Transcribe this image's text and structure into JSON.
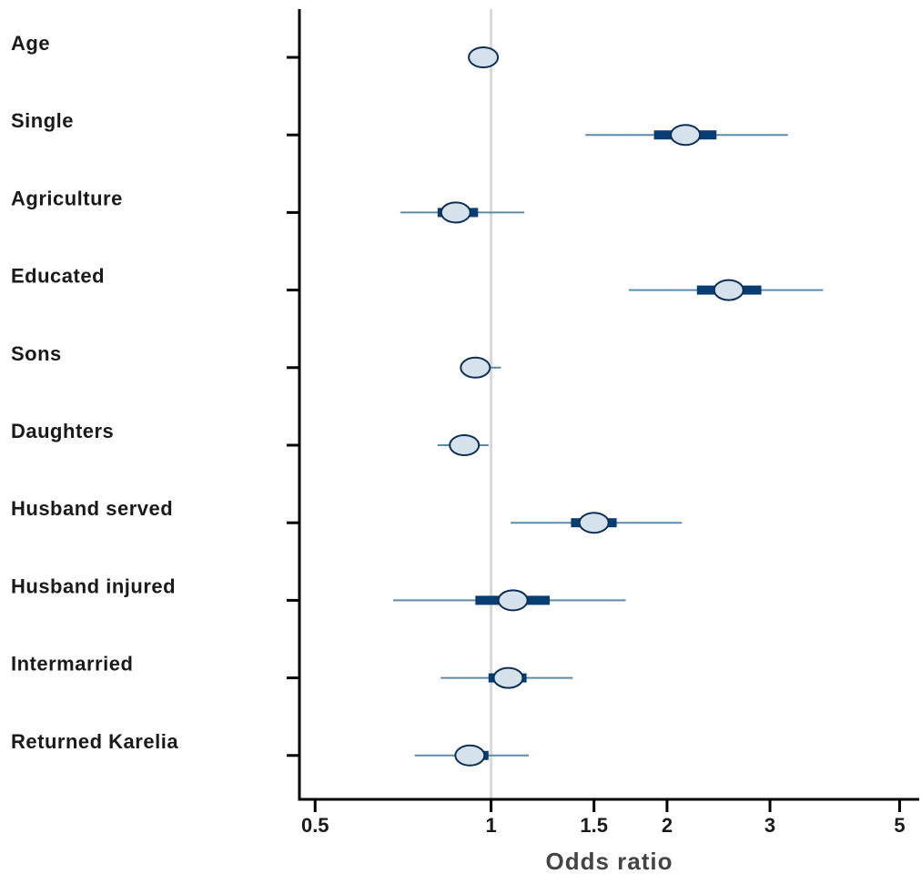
{
  "chart_data": {
    "type": "forest",
    "xlabel": "Odds ratio",
    "x_scale": "log",
    "xlim": [
      0.47,
      5.4
    ],
    "x_ticks": [
      0.5,
      1,
      1.5,
      2,
      3,
      5
    ],
    "x_tick_labels": [
      "0.5",
      "1",
      "1.5",
      "2",
      "3",
      "5"
    ],
    "reference_line": 1,
    "grid": false,
    "colors": {
      "ci_line": "#5b8ba8",
      "ci_box": "#063d73",
      "point_fill": "#d5e2ec",
      "point_stroke": "#0d2f55",
      "reference_line": "#d9d9d9",
      "axis": "#000000"
    },
    "rows": [
      {
        "label": "Age",
        "or": 0.97,
        "ci_inner": [
          0.965,
          0.975
        ],
        "ci_outer": [
          0.96,
          0.98
        ]
      },
      {
        "label": "Single",
        "or": 2.15,
        "ci_inner": [
          1.9,
          2.43
        ],
        "ci_outer": [
          1.45,
          3.22
        ]
      },
      {
        "label": "Agriculture",
        "or": 0.87,
        "ci_inner": [
          0.81,
          0.95
        ],
        "ci_outer": [
          0.7,
          1.14
        ]
      },
      {
        "label": "Educated",
        "or": 2.55,
        "ci_inner": [
          2.25,
          2.9
        ],
        "ci_outer": [
          1.72,
          3.7
        ]
      },
      {
        "label": "Sons",
        "or": 0.94,
        "ci_inner": [
          0.91,
          0.97
        ],
        "ci_outer": [
          0.9,
          1.04
        ]
      },
      {
        "label": "Daughters",
        "or": 0.9,
        "ci_inner": [
          0.87,
          0.92
        ],
        "ci_outer": [
          0.81,
          0.99
        ]
      },
      {
        "label": "Husband served",
        "or": 1.5,
        "ci_inner": [
          1.37,
          1.64
        ],
        "ci_outer": [
          1.08,
          2.12
        ]
      },
      {
        "label": "Husband injured",
        "or": 1.09,
        "ci_inner": [
          0.94,
          1.26
        ],
        "ci_outer": [
          0.68,
          1.7
        ]
      },
      {
        "label": "Intermarried",
        "or": 1.07,
        "ci_inner": [
          0.99,
          1.15
        ],
        "ci_outer": [
          0.82,
          1.38
        ]
      },
      {
        "label": "Returned Karelia",
        "or": 0.92,
        "ci_inner": [
          0.88,
          0.99
        ],
        "ci_outer": [
          0.74,
          1.16
        ]
      }
    ]
  }
}
